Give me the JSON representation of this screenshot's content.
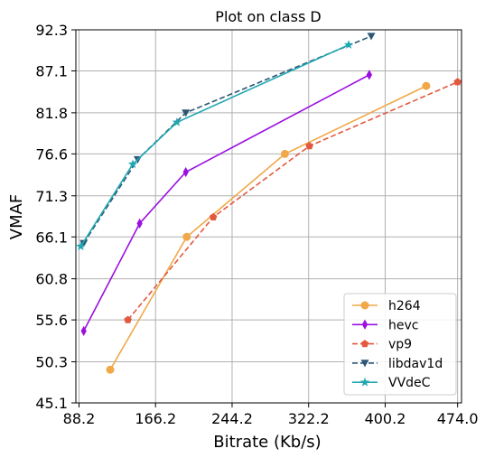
{
  "chart_data": {
    "type": "line",
    "title": "Plot on class D",
    "xlabel": "Bitrate (Kb/s)",
    "ylabel": "VMAF",
    "xlim": [
      85,
      478
    ],
    "ylim": [
      45.1,
      92.3
    ],
    "xticks": [
      88.2,
      166.2,
      244.2,
      322.2,
      400.2,
      474.0
    ],
    "yticks": [
      45.1,
      50.3,
      55.6,
      60.8,
      66.1,
      71.3,
      76.6,
      81.8,
      87.1,
      92.3
    ],
    "xtick_labels": [
      "88.2",
      "166.2",
      "244.2",
      "322.2",
      "400.2",
      "474.0"
    ],
    "ytick_labels": [
      "45.1",
      "50.3",
      "55.6",
      "60.8",
      "66.1",
      "71.3",
      "76.6",
      "81.8",
      "87.1",
      "92.3"
    ],
    "grid": true,
    "legend_position": "lower right",
    "series": [
      {
        "name": "h264",
        "color": "#f0a848",
        "dash": false,
        "marker": "circle",
        "x": [
          120,
          198,
          298,
          442
        ],
        "y": [
          49.3,
          66.1,
          76.6,
          85.2
        ]
      },
      {
        "name": "hevc",
        "color": "#9b0fe0",
        "dash": false,
        "marker": "diamond",
        "x": [
          93,
          150,
          197,
          384
        ],
        "y": [
          54.2,
          67.8,
          74.3,
          86.6
        ]
      },
      {
        "name": "vp9",
        "color": "#e2593f",
        "dash": true,
        "marker": "pentagon",
        "x": [
          138,
          225,
          323,
          474
        ],
        "y": [
          55.6,
          68.6,
          77.6,
          85.7
        ]
      },
      {
        "name": "libdav1d",
        "color": "#2c5775",
        "dash": true,
        "marker": "triangle-down",
        "x": [
          93,
          148,
          197,
          386
        ],
        "y": [
          65.3,
          75.9,
          81.8,
          91.5
        ]
      },
      {
        "name": "VVdeC",
        "color": "#21a8b2",
        "dash": false,
        "marker": "star",
        "x": [
          90,
          143,
          188,
          363
        ],
        "y": [
          64.9,
          75.3,
          80.6,
          90.4
        ]
      }
    ]
  }
}
